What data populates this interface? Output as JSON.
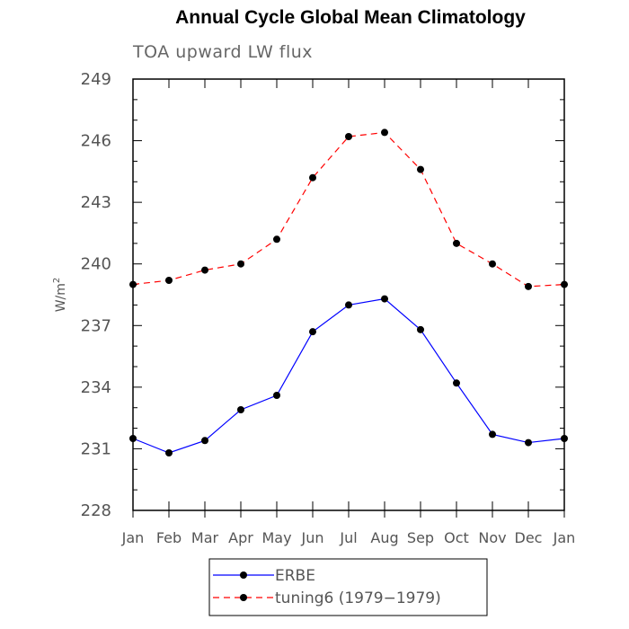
{
  "chart_data": {
    "type": "line",
    "title": "Annual Cycle Global Mean Climatology",
    "subtitle": "TOA upward LW flux",
    "ylabel_base": "W/m",
    "ylabel_sup": "2",
    "xlabel": "",
    "categories": [
      "Jan",
      "Feb",
      "Mar",
      "Apr",
      "May",
      "Jun",
      "Jul",
      "Aug",
      "Sep",
      "Oct",
      "Nov",
      "Dec",
      "Jan"
    ],
    "ylim": [
      228,
      249
    ],
    "yticks": [
      "228",
      "231",
      "234",
      "237",
      "240",
      "243",
      "246",
      "249"
    ],
    "series": [
      {
        "name": "ERBE",
        "color": "#0000ff",
        "dash": "solid",
        "values": [
          231.5,
          230.8,
          231.4,
          232.9,
          233.6,
          236.7,
          238.0,
          238.3,
          236.8,
          234.2,
          231.7,
          231.3,
          231.5
        ]
      },
      {
        "name": "tuning6 (1979−1979)",
        "color": "#ff0000",
        "dash": "dashed",
        "values": [
          239.0,
          239.2,
          239.7,
          240.0,
          241.2,
          244.2,
          246.2,
          246.4,
          244.6,
          241.0,
          240.0,
          238.9,
          239.0
        ]
      }
    ],
    "grid": false,
    "legend": "bottom"
  }
}
